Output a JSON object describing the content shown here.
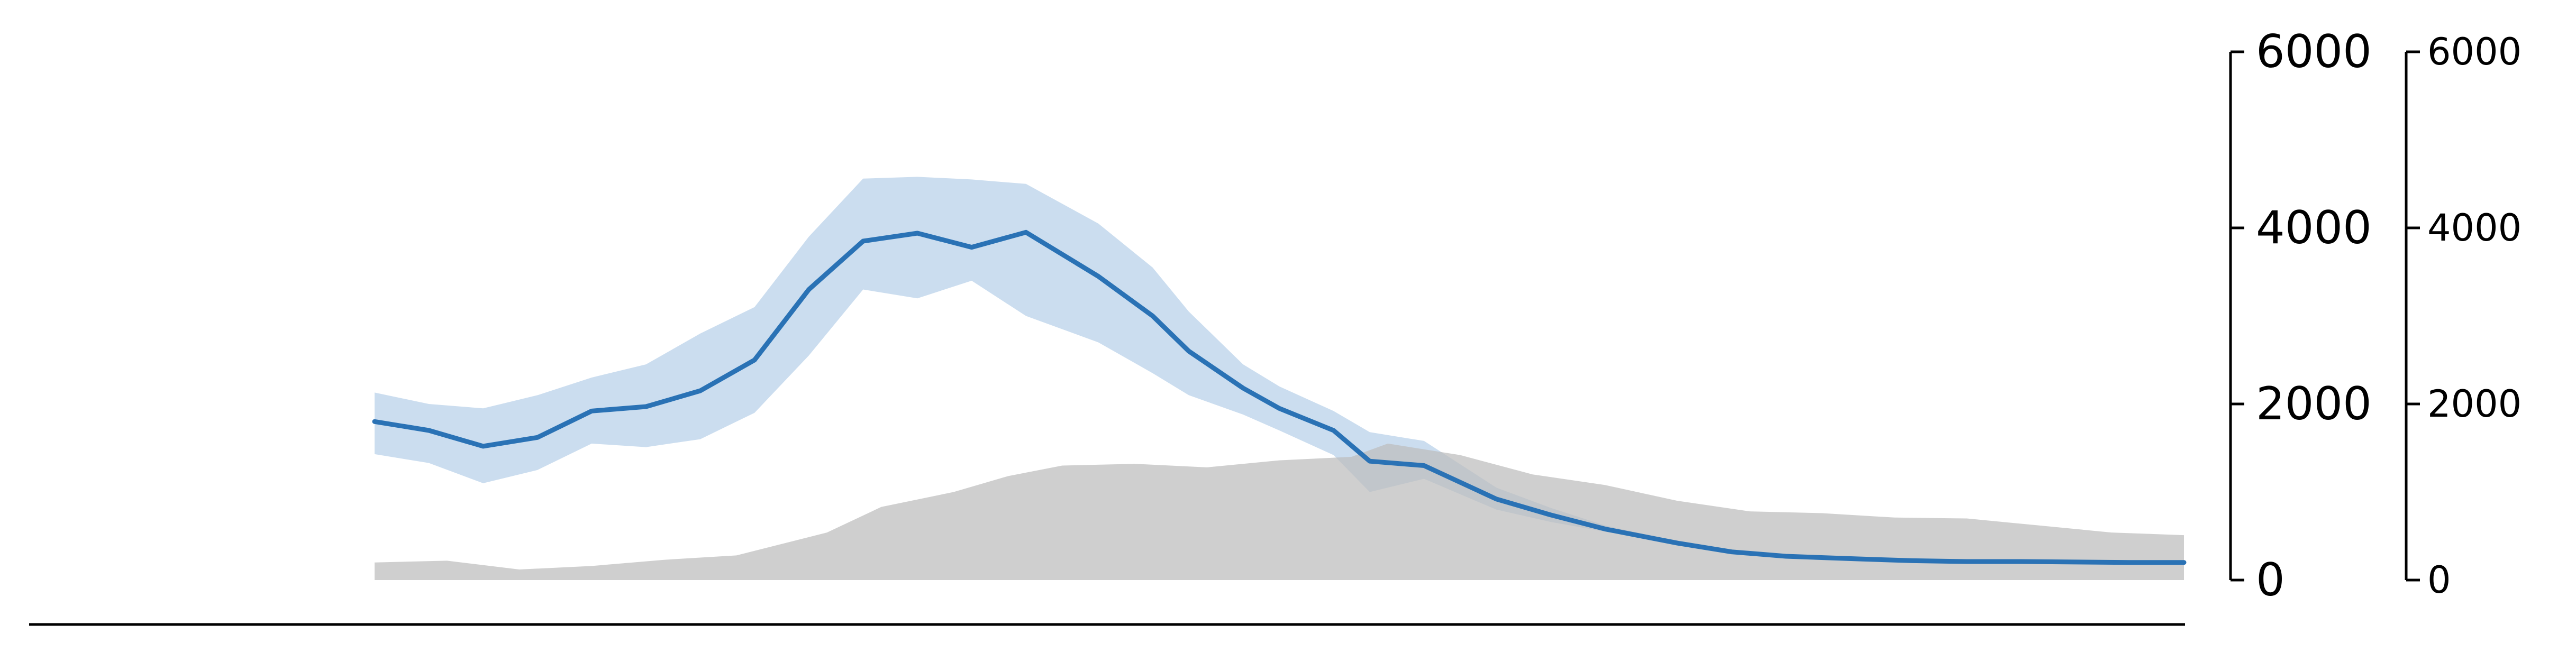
{
  "chart_data": {
    "type": "area",
    "title": "",
    "xlabel": "",
    "ylabel": "",
    "xlim": [
      0,
      100
    ],
    "ylim": [
      0,
      6000
    ],
    "grid": false,
    "axes": [
      {
        "name": "right-axis-inner",
        "ticks": [
          0,
          2000,
          4000,
          6000
        ],
        "tick_labels": [
          "0",
          "2000",
          "4000",
          "6000"
        ]
      },
      {
        "name": "right-axis-outer",
        "ticks": [
          0,
          2000,
          4000,
          6000
        ],
        "tick_labels": [
          "0",
          "2000",
          "4000",
          "6000"
        ]
      }
    ],
    "series": [
      {
        "kind": "line-with-band",
        "color": "#2a72b5",
        "band_color": "#c5d9ed",
        "x": [
          0,
          3,
          6,
          9,
          12,
          15,
          18,
          21,
          24,
          27,
          30,
          33,
          36,
          40,
          43,
          45,
          48,
          50,
          53,
          55,
          58,
          62,
          65,
          68,
          72,
          75,
          78,
          82,
          85,
          88,
          91,
          94,
          97,
          100
        ],
        "y": [
          1800,
          1700,
          1520,
          1620,
          1920,
          1970,
          2150,
          2500,
          3300,
          3850,
          3940,
          3780,
          3950,
          3450,
          3000,
          2600,
          2180,
          1950,
          1700,
          1350,
          1300,
          920,
          740,
          580,
          420,
          320,
          270,
          240,
          220,
          210,
          210,
          205,
          200,
          200
        ],
        "lower": [
          1430,
          1330,
          1100,
          1250,
          1550,
          1510,
          1600,
          1900,
          2550,
          3300,
          3200,
          3400,
          3000,
          2700,
          2350,
          2100,
          1880,
          1700,
          1420,
          1000,
          1150,
          800,
          660,
          550,
          400,
          300,
          250,
          220,
          200,
          190,
          190,
          190,
          180,
          180
        ],
        "upper": [
          2130,
          2000,
          1950,
          2100,
          2300,
          2450,
          2800,
          3100,
          3900,
          4560,
          4580,
          4550,
          4500,
          4050,
          3550,
          3050,
          2450,
          2200,
          1920,
          1680,
          1580,
          1050,
          820,
          620,
          440,
          340,
          280,
          250,
          230,
          220,
          220,
          215,
          210,
          210
        ]
      },
      {
        "kind": "area",
        "color": "#bdbdbd",
        "x": [
          0,
          4,
          8,
          12,
          16,
          20,
          25,
          28,
          32,
          35,
          38,
          42,
          46,
          50,
          54,
          56,
          60,
          64,
          68,
          72,
          76,
          80,
          84,
          88,
          92,
          96,
          100
        ],
        "y": [
          200,
          220,
          120,
          160,
          230,
          280,
          540,
          830,
          1000,
          1180,
          1300,
          1320,
          1280,
          1360,
          1400,
          1550,
          1420,
          1200,
          1080,
          900,
          780,
          760,
          710,
          700,
          620,
          540,
          510
        ]
      }
    ]
  }
}
